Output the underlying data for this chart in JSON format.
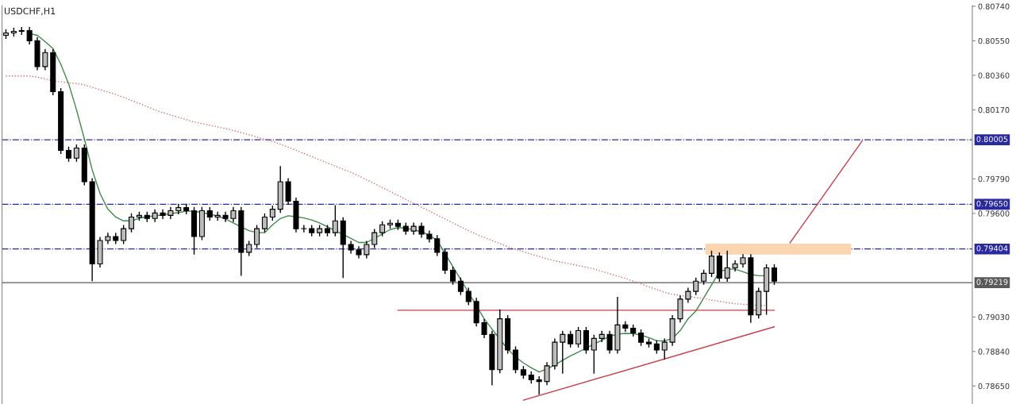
{
  "chart_data": {
    "type": "candlestick",
    "title": "USDCHF,H1",
    "color": "#000000",
    "colors": [
      "#bdbdbd",
      "#bdbdbd",
      "#bdbdbd",
      "#000000",
      "#000000",
      "#bdbdbd",
      "#000000",
      "#000000",
      "#000000",
      "#bdbdbd",
      "#000000",
      "#000000",
      "#bdbdbd",
      "#bdbdbd",
      "#000000",
      "#bdbdbd",
      "#bdbdbd",
      "#bdbdbd",
      "#000000",
      "#bdbdbd",
      "#000000",
      "#bdbdbd",
      "#bdbdbd",
      "#000000",
      "#000000",
      "#bdbdbd",
      "#000000",
      "#bdbdbd",
      "#000000",
      "#bdbdbd",
      "#000000",
      "#bdbdbd",
      "#bdbdbd",
      "#bdbdbd",
      "#bdbdbd",
      "#bdbdbd",
      "#000000",
      "#000000",
      "#bdbdbd",
      "#000000",
      "#bdbdbd",
      "#000000",
      "#bdbdbd",
      "#000000",
      "#000000",
      "#000000",
      "#bdbdbd",
      "#bdbdbd",
      "#bdbdbd",
      "#bdbdbd",
      "#000000",
      "#000000",
      "#bdbdbd",
      "#000000",
      "#000000",
      "#000000",
      "#000000",
      "#000000",
      "#000000",
      "#000000",
      "#000000",
      "#000000",
      "#000000",
      "#bdbdbd",
      "#000000",
      "#000000",
      "#000000",
      "#000000",
      "#000000",
      "#bdbdbd",
      "#bdbdbd",
      "#bdbdbd",
      "#000000",
      "#bdbdbd",
      "#000000",
      "#bdbdbd",
      "#bdbdbd",
      "#000000",
      "#bdbdbd",
      "#000000",
      "#000000",
      "#000000",
      "#000000",
      "#000000",
      "#bdbdbd",
      "#bdbdbd",
      "#bdbdbd",
      "#bdbdbd",
      "#bdbdbd",
      "#bdbdbd",
      "#bdbdbd",
      "#000000",
      "#bdbdbd",
      "#bdbdbd",
      "#bdbdbd",
      "#000000",
      "#bdbdbd",
      "#bdbdbd",
      "#000000"
    ],
    "categories": [
      null,
      null,
      null,
      null,
      null,
      null,
      null,
      null,
      null,
      null,
      null,
      null,
      null,
      null,
      null,
      null,
      null,
      null,
      null,
      null,
      null,
      null,
      null,
      null,
      null,
      null,
      null,
      null,
      null,
      null,
      null,
      null,
      null,
      null,
      null,
      null,
      null,
      null,
      null,
      null,
      null,
      null,
      null,
      null,
      null,
      null,
      null,
      null,
      null,
      null,
      null,
      null,
      null,
      null,
      null,
      null,
      null,
      null,
      null,
      null,
      null,
      null,
      null,
      null,
      null,
      null,
      null,
      null,
      null,
      null,
      null,
      null,
      null,
      null,
      null,
      null,
      null,
      null,
      null,
      null,
      null,
      null,
      null,
      null,
      null,
      null,
      null,
      null,
      null,
      null,
      null,
      null,
      null,
      null,
      null,
      null,
      null,
      null,
      null
    ],
    "ohlc": [
      [
        0.8058,
        0.80613,
        0.8056,
        0.80593
      ],
      [
        0.80593,
        0.80622,
        0.80573,
        0.80602
      ],
      [
        0.80602,
        0.80626,
        0.80582,
        0.80606
      ],
      [
        0.80606,
        0.80626,
        0.8053,
        0.8055
      ],
      [
        0.8055,
        0.8057,
        0.80388,
        0.80408
      ],
      [
        0.80408,
        0.80505,
        0.80388,
        0.80485
      ],
      [
        0.80485,
        0.80505,
        0.8025,
        0.8027
      ],
      [
        0.8027,
        0.8029,
        0.79927,
        0.79947
      ],
      [
        0.79947,
        0.79967,
        0.79884,
        0.79904
      ],
      [
        0.79904,
        0.7998,
        0.79884,
        0.7996
      ],
      [
        0.7996,
        0.7998,
        0.79754,
        0.79774
      ],
      [
        0.79774,
        0.79794,
        0.79227,
        0.79322
      ],
      [
        0.79322,
        0.79471,
        0.79302,
        0.79451
      ],
      [
        0.79451,
        0.79493,
        0.79431,
        0.79473
      ],
      [
        0.79473,
        0.79493,
        0.79431,
        0.79451
      ],
      [
        0.79451,
        0.79536,
        0.79431,
        0.79516
      ],
      [
        0.79516,
        0.796,
        0.79496,
        0.7958
      ],
      [
        0.7958,
        0.79609,
        0.7956,
        0.79589
      ],
      [
        0.79589,
        0.79609,
        0.79552,
        0.79572
      ],
      [
        0.79572,
        0.79622,
        0.79552,
        0.79602
      ],
      [
        0.79602,
        0.79622,
        0.79569,
        0.79589
      ],
      [
        0.79589,
        0.79635,
        0.79569,
        0.79615
      ],
      [
        0.79615,
        0.79652,
        0.79595,
        0.79632
      ],
      [
        0.79632,
        0.79652,
        0.79595,
        0.79615
      ],
      [
        0.79615,
        0.79635,
        0.79373,
        0.79473
      ],
      [
        0.79473,
        0.79635,
        0.79453,
        0.79615
      ],
      [
        0.79615,
        0.79635,
        0.7956,
        0.7958
      ],
      [
        0.7958,
        0.79609,
        0.7956,
        0.79589
      ],
      [
        0.79589,
        0.79609,
        0.79552,
        0.79572
      ],
      [
        0.79572,
        0.79635,
        0.79552,
        0.79615
      ],
      [
        0.79615,
        0.79635,
        0.79257,
        0.79386
      ],
      [
        0.79386,
        0.79449,
        0.79366,
        0.79429
      ],
      [
        0.79429,
        0.79536,
        0.79409,
        0.79516
      ],
      [
        0.79516,
        0.796,
        0.79496,
        0.7958
      ],
      [
        0.7958,
        0.79643,
        0.7956,
        0.79623
      ],
      [
        0.79623,
        0.7986,
        0.79603,
        0.79774
      ],
      [
        0.79774,
        0.79794,
        0.79647,
        0.79667
      ],
      [
        0.79667,
        0.79687,
        0.79496,
        0.79516
      ],
      [
        0.79516,
        0.79536,
        0.79496,
        0.79516
      ],
      [
        0.79516,
        0.79536,
        0.79474,
        0.79494
      ],
      [
        0.79494,
        0.79536,
        0.79474,
        0.79516
      ],
      [
        0.79516,
        0.79536,
        0.79474,
        0.79494
      ],
      [
        0.79494,
        0.79645,
        0.79474,
        0.79559
      ],
      [
        0.79559,
        0.79579,
        0.79244,
        0.79429
      ],
      [
        0.79429,
        0.79449,
        0.79379,
        0.79399
      ],
      [
        0.79399,
        0.79419,
        0.79353,
        0.79373
      ],
      [
        0.79373,
        0.79449,
        0.79353,
        0.79429
      ],
      [
        0.79429,
        0.79514,
        0.79409,
        0.79494
      ],
      [
        0.79494,
        0.79557,
        0.79474,
        0.79537
      ],
      [
        0.79537,
        0.79566,
        0.79517,
        0.79546
      ],
      [
        0.79546,
        0.79566,
        0.79509,
        0.79529
      ],
      [
        0.79529,
        0.79549,
        0.79483,
        0.79503
      ],
      [
        0.79503,
        0.79549,
        0.79483,
        0.79529
      ],
      [
        0.79529,
        0.79549,
        0.79466,
        0.79486
      ],
      [
        0.79486,
        0.79506,
        0.7944,
        0.7946
      ],
      [
        0.7946,
        0.7948,
        0.79366,
        0.79386
      ],
      [
        0.79386,
        0.79406,
        0.79267,
        0.79287
      ],
      [
        0.79287,
        0.79307,
        0.79207,
        0.79227
      ],
      [
        0.79227,
        0.79247,
        0.79151,
        0.79171
      ],
      [
        0.79171,
        0.79191,
        0.79095,
        0.79115
      ],
      [
        0.79115,
        0.79135,
        0.78978,
        0.78998
      ],
      [
        0.78998,
        0.79018,
        0.78914,
        0.78934
      ],
      [
        0.78934,
        0.78954,
        0.78654,
        0.7874
      ],
      [
        0.7874,
        0.79072,
        0.7872,
        0.7902
      ],
      [
        0.7902,
        0.7904,
        0.78828,
        0.78848
      ],
      [
        0.78848,
        0.78868,
        0.7872,
        0.7874
      ],
      [
        0.7874,
        0.7876,
        0.7869,
        0.7871
      ],
      [
        0.7871,
        0.7873,
        0.78664,
        0.78684
      ],
      [
        0.78684,
        0.78704,
        0.78602,
        0.78675
      ],
      [
        0.78675,
        0.78781,
        0.78655,
        0.78761
      ],
      [
        0.78761,
        0.78911,
        0.78741,
        0.78891
      ],
      [
        0.78891,
        0.78954,
        0.78718,
        0.78934
      ],
      [
        0.78934,
        0.78954,
        0.78862,
        0.78882
      ],
      [
        0.78882,
        0.78975,
        0.78862,
        0.78955
      ],
      [
        0.78955,
        0.78975,
        0.78828,
        0.78848
      ],
      [
        0.78848,
        0.78932,
        0.78718,
        0.78912
      ],
      [
        0.78912,
        0.78954,
        0.78892,
        0.78934
      ],
      [
        0.78934,
        0.78954,
        0.78828,
        0.78848
      ],
      [
        0.78848,
        0.79141,
        0.78828,
        0.78986
      ],
      [
        0.78986,
        0.79006,
        0.78948,
        0.78968
      ],
      [
        0.78968,
        0.78988,
        0.78922,
        0.78942
      ],
      [
        0.78942,
        0.78962,
        0.78871,
        0.78891
      ],
      [
        0.78891,
        0.78911,
        0.78862,
        0.78882
      ],
      [
        0.78882,
        0.78902,
        0.78828,
        0.78848
      ],
      [
        0.78848,
        0.78911,
        0.78796,
        0.78891
      ],
      [
        0.78891,
        0.7904,
        0.78871,
        0.7902
      ],
      [
        0.7902,
        0.79148,
        0.79,
        0.79128
      ],
      [
        0.79128,
        0.79191,
        0.79108,
        0.79171
      ],
      [
        0.79171,
        0.79247,
        0.79151,
        0.79227
      ],
      [
        0.79227,
        0.7929,
        0.79207,
        0.7927
      ],
      [
        0.7927,
        0.79395,
        0.7925,
        0.79365
      ],
      [
        0.79365,
        0.79385,
        0.79224,
        0.79244
      ],
      [
        0.79244,
        0.79395,
        0.79224,
        0.793
      ],
      [
        0.793,
        0.79342,
        0.7928,
        0.79322
      ],
      [
        0.79322,
        0.79376,
        0.79302,
        0.79356
      ],
      [
        0.79356,
        0.79376,
        0.78998,
        0.79042
      ],
      [
        0.79042,
        0.79191,
        0.79022,
        0.79171
      ],
      [
        0.79171,
        0.7932,
        0.79042,
        0.793
      ],
      [
        0.793,
        0.7932,
        0.79207,
        0.79227
      ]
    ],
    "series": [
      {
        "type": "line",
        "color": "#3d8a4a",
        "line_style": "solid",
        "values": [
          null,
          null,
          null,
          0.8059,
          0.8058,
          0.80545,
          0.80507,
          0.80421,
          0.80313,
          0.8017,
          0.8001,
          0.7984,
          0.7971,
          0.79623,
          0.7958,
          0.79559,
          0.79559,
          0.79573,
          0.79582,
          0.79587,
          0.79592,
          0.79599,
          0.79605,
          0.79612,
          0.79612,
          0.79605,
          0.79596,
          0.79585,
          0.79569,
          0.79548,
          0.79526,
          0.79505,
          0.79494,
          0.79494,
          0.79537,
          0.79572,
          0.79587,
          0.79582,
          0.79575,
          0.79564,
          0.79548,
          0.79527,
          0.79505,
          0.79484,
          0.79462,
          0.7944,
          0.7944,
          0.79462,
          0.79487,
          0.79511,
          0.79522,
          0.79518,
          0.7951,
          0.79499,
          0.7948,
          0.79451,
          0.79379,
          0.79307,
          0.79236,
          0.79164,
          null,
          0.7902,
          0.78963,
          0.78907,
          0.78853,
          0.7881,
          0.78777,
          0.7875,
          0.78727,
          0.78744,
          0.78766,
          0.78792,
          0.78816,
          0.78837,
          0.78859,
          0.7888,
          0.78902,
          0.78923,
          0.78936,
          0.7894,
          0.78938,
          0.7893,
          0.78916,
          0.78899,
          0.78898,
          0.78912,
          0.78955,
          0.7902,
          0.79063,
          0.79135,
          0.79207,
          0.79279,
          0.79293,
          0.79293,
          0.79279,
          0.79264,
          0.79257,
          0.79257,
          null
        ]
      },
      {
        "type": "line",
        "color": "#d07070",
        "line_style": "dotted",
        "values": [
          0.80356,
          0.80356,
          0.80356,
          0.80356,
          0.8035,
          0.8034,
          0.8033,
          0.80324,
          0.80319,
          0.80315,
          0.80307,
          0.80294,
          0.80281,
          0.80268,
          0.80255,
          0.80239,
          0.80222,
          0.80205,
          0.80188,
          0.8017,
          0.80155,
          0.80142,
          0.80129,
          0.80116,
          0.80103,
          0.80094,
          0.80085,
          0.80076,
          0.80067,
          0.80057,
          0.80045,
          0.80033,
          0.8002,
          0.80008,
          0.79996,
          0.79981,
          0.79964,
          0.79947,
          0.7993,
          0.79913,
          0.79895,
          0.79878,
          0.7986,
          0.79843,
          0.79826,
          0.79806,
          0.79785,
          0.79764,
          0.79742,
          0.79721,
          0.79699,
          0.79677,
          0.79656,
          0.79634,
          0.79613,
          0.79591,
          0.7957,
          0.79548,
          0.79526,
          0.79505,
          0.79485,
          0.79468,
          0.79451,
          0.79434,
          0.79417,
          0.79402,
          0.79389,
          0.79376,
          0.79363,
          0.7935,
          0.79339,
          0.7933,
          0.79322,
          0.79313,
          0.79304,
          0.79294,
          0.79281,
          0.79268,
          0.79255,
          0.79242,
          0.79227,
          0.79212,
          0.79196,
          0.79181,
          0.79165,
          0.79155,
          0.79149,
          0.79143,
          0.79137,
          0.79131,
          0.79123,
          0.79116,
          0.79109,
          0.79103,
          0.791,
          0.79097,
          0.79094,
          0.79093,
          null
        ]
      },
      {
        "type": "line",
        "color": "#c8404a",
        "line_style": "solid",
        "values": [
          null,
          null,
          null,
          null,
          null,
          null,
          null,
          null,
          null,
          null,
          null,
          null,
          null,
          null,
          null,
          null,
          null,
          null,
          null,
          null,
          null,
          null,
          null,
          null,
          null,
          null,
          null,
          null,
          null,
          null,
          null,
          null,
          null,
          null,
          null,
          null,
          null,
          null,
          null,
          null,
          null,
          null,
          null,
          null,
          null,
          null,
          null,
          null,
          null,
          null,
          0.79067,
          null,
          null,
          null,
          null,
          null,
          null,
          null,
          null,
          null,
          null,
          null,
          null,
          null,
          null,
          null,
          null,
          null,
          null,
          null,
          null,
          null,
          null,
          null,
          null,
          null,
          null,
          null,
          null,
          null,
          null,
          null,
          null,
          null,
          null,
          null,
          null,
          null,
          null,
          null,
          null,
          null,
          null,
          null,
          null,
          null,
          null,
          null,
          0.79067
        ]
      },
      {
        "type": "line",
        "color": "#c8404a",
        "line_style": "solid",
        "values": [
          null,
          null,
          null,
          null,
          null,
          null,
          null,
          null,
          null,
          null,
          null,
          null,
          null,
          null,
          null,
          null,
          null,
          null,
          null,
          null,
          null,
          null,
          null,
          null,
          null,
          null,
          null,
          null,
          null,
          null,
          null,
          null,
          null,
          null,
          null,
          null,
          null,
          null,
          null,
          null,
          null,
          null,
          null,
          null,
          null,
          null,
          null,
          null,
          null,
          null,
          null,
          null,
          null,
          null,
          null,
          null,
          null,
          null,
          null,
          null,
          null,
          null,
          null,
          null,
          null,
          null,
          0.78572,
          null,
          null,
          null,
          null,
          null,
          null,
          null,
          null,
          null,
          null,
          null,
          null,
          null,
          null,
          null,
          null,
          null,
          null,
          null,
          null,
          null,
          null,
          null,
          null,
          null,
          null,
          null,
          null,
          null,
          null,
          null,
          0.78976
        ]
      }
    ],
    "ylim": [
      0.78551,
      0.80744
    ],
    "yticks": [
      {
        "value": 0.8074,
        "label": "0.80740"
      },
      {
        "value": 0.8055,
        "label": "0.80550"
      },
      {
        "value": 0.8036,
        "label": "0.80360"
      },
      {
        "value": 0.8017,
        "label": "0.80170"
      },
      {
        "value": 0.7979,
        "label": "0.79790"
      },
      {
        "value": 0.796,
        "label": "0.79600"
      },
      {
        "value": 0.7903,
        "label": "0.79030"
      },
      {
        "value": 0.7884,
        "label": "0.78840"
      },
      {
        "value": 0.7865,
        "label": "0.78650"
      }
    ],
    "tick_labels": "y",
    "grid": false,
    "ref_lines": [
      {
        "axis": "y",
        "value": 0.80005,
        "label": "0.80005",
        "color": "#2a2aa0",
        "line_style": "dashdot"
      },
      {
        "axis": "y",
        "value": 0.7965,
        "label": "0.79650",
        "color": "#2a2aa0",
        "line_style": "dashdot"
      },
      {
        "axis": "y",
        "value": 0.79404,
        "label": "0.79404",
        "color": "#2a2aa0",
        "line_style": "dashdot"
      },
      {
        "axis": "y",
        "value": 0.79219,
        "label": "0.79219",
        "color": "#5a5a5a",
        "line_style": "solid"
      }
    ]
  }
}
